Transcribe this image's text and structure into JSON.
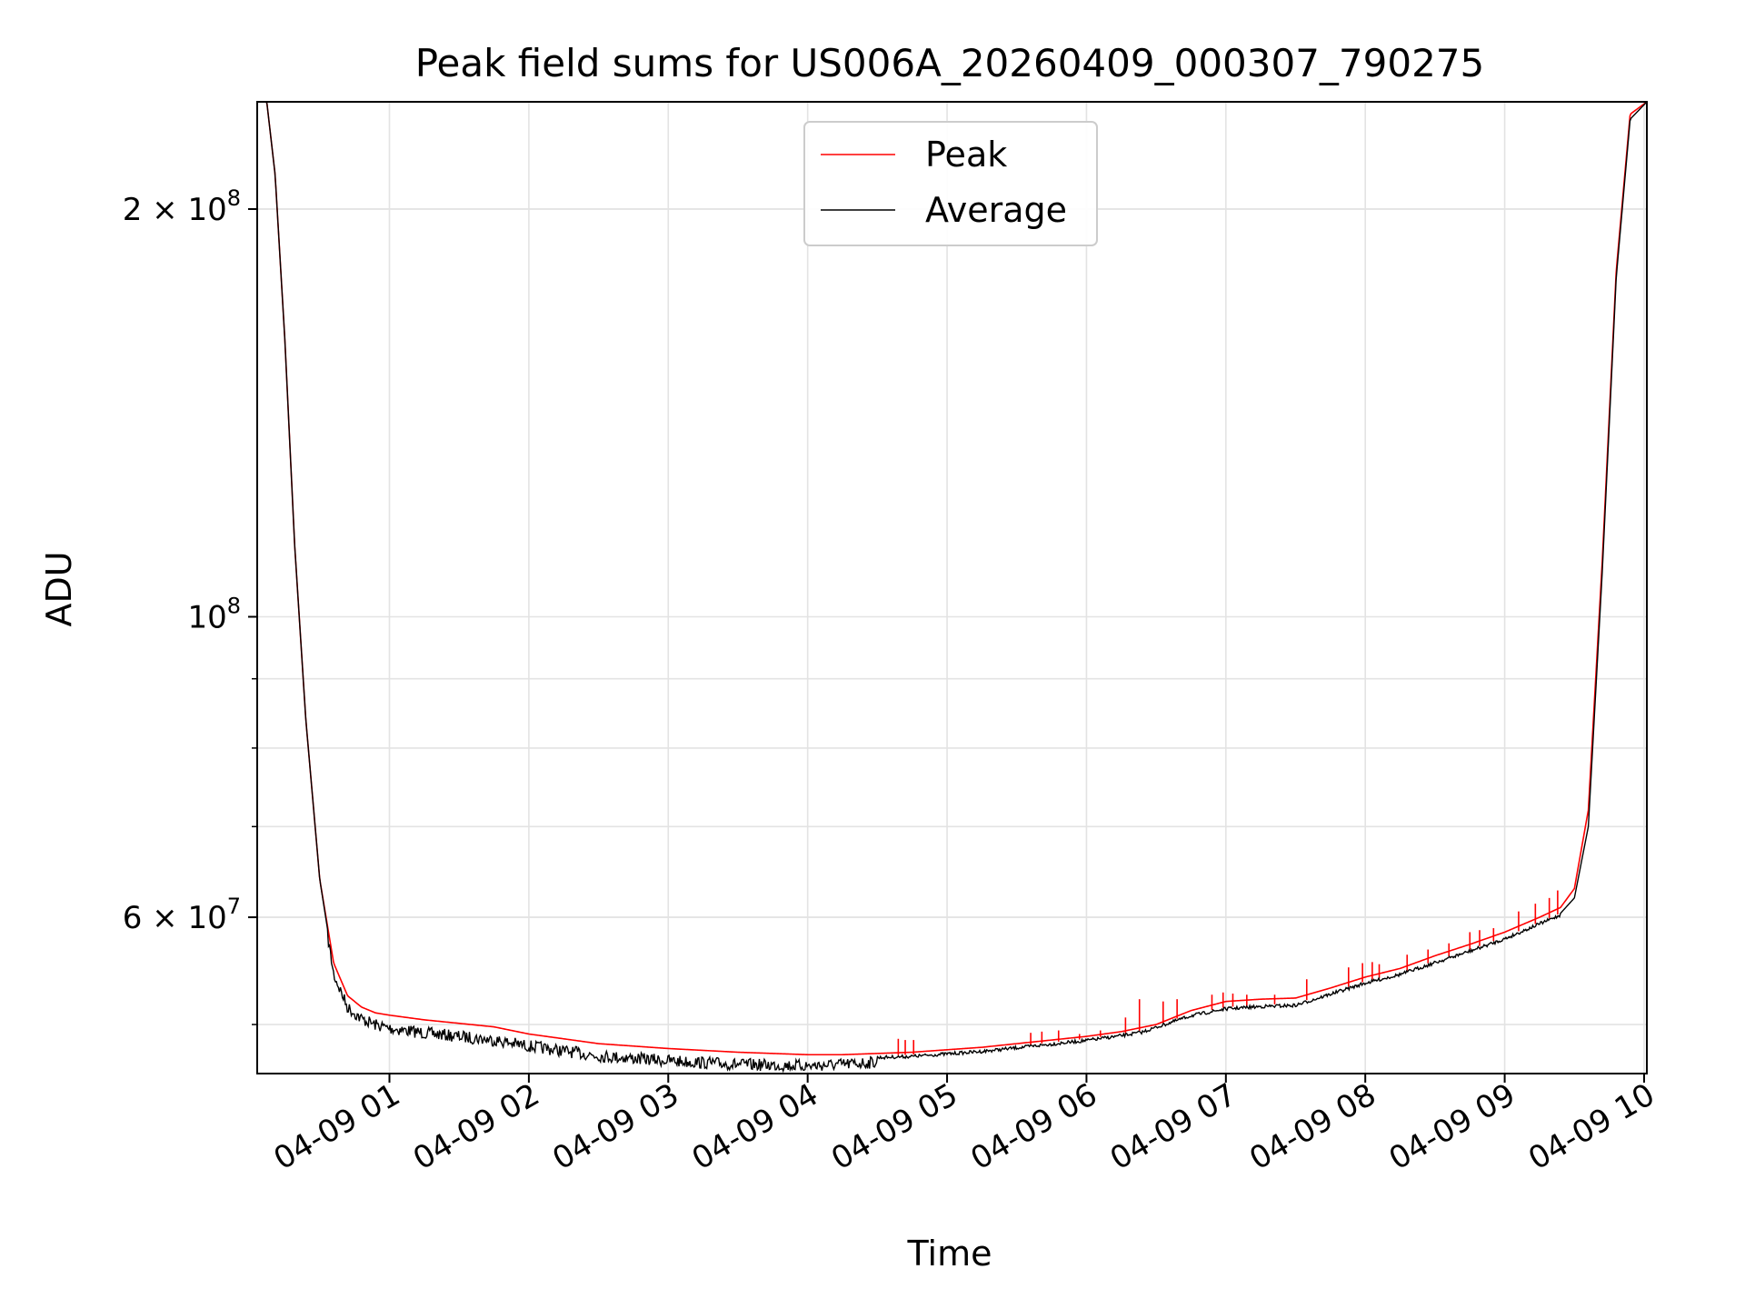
{
  "chart_data": {
    "type": "line",
    "title": "Peak field sums for US006A_20260409_000307_790275",
    "xlabel": "Time",
    "ylabel": "ADU",
    "yscale": "log",
    "grid": true,
    "legend_loc": "upper center",
    "xlim": [
      0.0514,
      10.0197
    ],
    "ylim": [
      46000000,
      240000000
    ],
    "x_units": "hours since 2026-04-09 00:00",
    "x_ticks": [
      1,
      2,
      3,
      4,
      5,
      6,
      7,
      8,
      9,
      10
    ],
    "x_tick_labels": [
      "04-09 01",
      "04-09 02",
      "04-09 03",
      "04-09 04",
      "04-09 05",
      "04-09 06",
      "04-09 07",
      "04-09 08",
      "04-09 09",
      "04-09 10"
    ],
    "y_major_ticks": [
      {
        "value": 60000000,
        "mant": "6",
        "exp": "7",
        "label": "6 × 10^7"
      },
      {
        "value": 100000000,
        "mant": "",
        "exp": "8",
        "label": "10^8"
      },
      {
        "value": 200000000,
        "mant": "2",
        "exp": "8",
        "label": "2 × 10^8"
      }
    ],
    "y_minor_ticks": [
      50000000,
      60000000,
      70000000,
      80000000,
      90000000,
      200000000
    ],
    "series": [
      {
        "name": "Peak",
        "color": "#ff0000",
        "x": [
          0.05,
          0.12,
          0.18,
          0.25,
          0.32,
          0.4,
          0.5,
          0.6,
          0.7,
          0.8,
          0.9,
          1.0,
          1.25,
          1.5,
          1.75,
          2.0,
          2.25,
          2.5,
          3.0,
          3.5,
          4.0,
          4.25,
          4.5,
          4.75,
          5.0,
          5.25,
          5.5,
          5.75,
          6.0,
          6.25,
          6.5,
          6.75,
          7.0,
          7.25,
          7.5,
          7.75,
          8.0,
          8.25,
          8.5,
          8.75,
          9.0,
          9.25,
          9.4,
          9.5,
          9.6,
          9.7,
          9.8,
          9.9,
          10.02
        ],
        "y": [
          240000000,
          240000000,
          212000000,
          160000000,
          113000000,
          84000000,
          64000000,
          55500000,
          52500000,
          51500000,
          51000000,
          50800000,
          50400000,
          50100000,
          49800000,
          49200000,
          48800000,
          48400000,
          48000000,
          47700000,
          47500000,
          47500000,
          47600000,
          47700000,
          47900000,
          48100000,
          48400000,
          48700000,
          49000000,
          49400000,
          50000000,
          51200000,
          52000000,
          52200000,
          52300000,
          53200000,
          54200000,
          55000000,
          56200000,
          57300000,
          58500000,
          60000000,
          61000000,
          63000000,
          72000000,
          110000000,
          180000000,
          235000000,
          240000000
        ],
        "spikes": [
          {
            "x": 4.65,
            "y": 48800000
          },
          {
            "x": 4.7,
            "y": 48700000
          },
          {
            "x": 4.76,
            "y": 48700000
          },
          {
            "x": 5.6,
            "y": 49300000
          },
          {
            "x": 5.68,
            "y": 49400000
          },
          {
            "x": 5.8,
            "y": 49500000
          },
          {
            "x": 5.95,
            "y": 49200000
          },
          {
            "x": 6.1,
            "y": 49500000
          },
          {
            "x": 6.28,
            "y": 50600000
          },
          {
            "x": 6.38,
            "y": 52200000
          },
          {
            "x": 6.55,
            "y": 52000000
          },
          {
            "x": 6.65,
            "y": 52200000
          },
          {
            "x": 6.9,
            "y": 52600000
          },
          {
            "x": 6.98,
            "y": 52800000
          },
          {
            "x": 7.05,
            "y": 52700000
          },
          {
            "x": 7.15,
            "y": 52600000
          },
          {
            "x": 7.35,
            "y": 52600000
          },
          {
            "x": 7.58,
            "y": 54000000
          },
          {
            "x": 7.88,
            "y": 55100000
          },
          {
            "x": 7.98,
            "y": 55500000
          },
          {
            "x": 8.05,
            "y": 55600000
          },
          {
            "x": 8.1,
            "y": 55400000
          },
          {
            "x": 8.3,
            "y": 56300000
          },
          {
            "x": 8.45,
            "y": 56800000
          },
          {
            "x": 8.6,
            "y": 57400000
          },
          {
            "x": 8.75,
            "y": 58500000
          },
          {
            "x": 8.82,
            "y": 58700000
          },
          {
            "x": 8.92,
            "y": 58900000
          },
          {
            "x": 9.1,
            "y": 60600000
          },
          {
            "x": 9.22,
            "y": 61400000
          },
          {
            "x": 9.32,
            "y": 62000000
          },
          {
            "x": 9.38,
            "y": 62800000
          }
        ]
      },
      {
        "name": "Average",
        "color": "#000000",
        "x": [
          0.05,
          0.12,
          0.18,
          0.25,
          0.32,
          0.4,
          0.5,
          0.6,
          0.7,
          0.8,
          0.9,
          1.0,
          1.25,
          1.5,
          1.75,
          2.0,
          2.25,
          2.5,
          3.0,
          3.5,
          4.0,
          4.25,
          4.5,
          4.75,
          5.0,
          5.25,
          5.5,
          5.75,
          6.0,
          6.25,
          6.4,
          6.5,
          6.75,
          7.0,
          7.25,
          7.5,
          7.75,
          8.0,
          8.25,
          8.5,
          8.75,
          9.0,
          9.25,
          9.4,
          9.5,
          9.6,
          9.7,
          9.8,
          9.9,
          10.02
        ],
        "y": [
          240000000,
          240000000,
          212000000,
          160000000,
          113000000,
          84000000,
          64000000,
          55000000,
          52000000,
          51000000,
          50500000,
          50200000,
          49800000,
          49500000,
          49200000,
          48700000,
          48300000,
          47900000,
          47500000,
          47200000,
          47100000,
          47200000,
          47400000,
          47500000,
          47700000,
          47900000,
          48200000,
          48500000,
          48800000,
          49200000,
          49500000,
          49900000,
          50900000,
          51500000,
          51700000,
          51800000,
          52800000,
          53800000,
          54600000,
          55700000,
          56800000,
          58000000,
          59500000,
          60400000,
          62000000,
          70000000,
          108000000,
          178000000,
          233000000,
          240000000
        ],
        "noise_range": [
          0.55,
          4.5
        ]
      }
    ]
  }
}
